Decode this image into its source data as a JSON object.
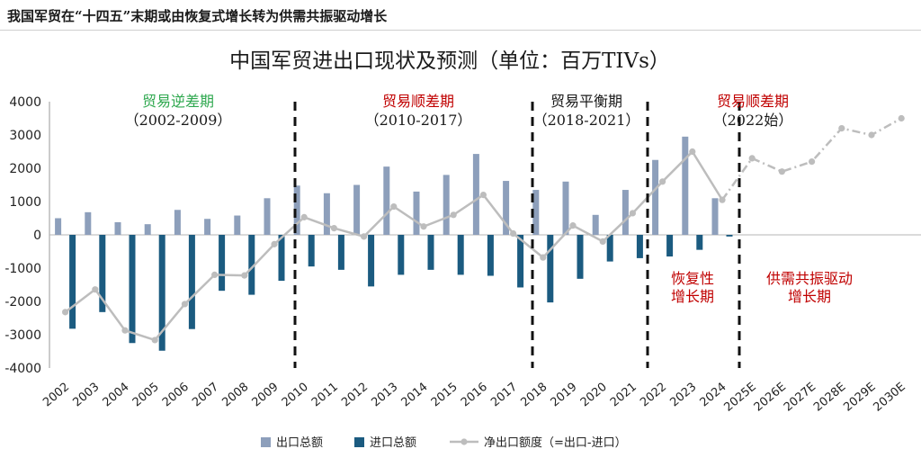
{
  "header": {
    "title": "我国军贸在“十四五”末期或由恢复式增长转为供需共振驱动增长"
  },
  "chart_data": {
    "type": "bar",
    "title": "中国军贸进出口现状及预测（单位：百万TIVs）",
    "categories": [
      "2002",
      "2003",
      "2004",
      "2005",
      "2006",
      "2007",
      "2008",
      "2009",
      "2010",
      "2011",
      "2012",
      "2013",
      "2014",
      "2015",
      "2016",
      "2017",
      "2018",
      "2019",
      "2020",
      "2021",
      "2022",
      "2023",
      "2024",
      "2025E",
      "2026E",
      "2027E",
      "2028E",
      "2029E",
      "2030E"
    ],
    "ylim": [
      -4000,
      4000
    ],
    "yticks": [
      -4000,
      -3000,
      -2000,
      -1000,
      0,
      1000,
      2000,
      3000,
      4000
    ],
    "series": [
      {
        "name": "出口总额",
        "color": "#8d9fbb",
        "values": [
          500,
          680,
          380,
          320,
          750,
          480,
          580,
          1100,
          1480,
          1250,
          1500,
          2050,
          1300,
          1800,
          2430,
          1620,
          1350,
          1600,
          600,
          1350,
          2250,
          2950,
          1100,
          null,
          null,
          null,
          null,
          null,
          null
        ]
      },
      {
        "name": "进口总额",
        "color": "#1b5b80",
        "values": [
          -2820,
          -2320,
          -3250,
          -3480,
          -2830,
          -1680,
          -1800,
          -1380,
          -950,
          -1050,
          -1550,
          -1200,
          -1050,
          -1200,
          -1230,
          -1580,
          -2030,
          -1320,
          -800,
          -700,
          -650,
          -450,
          -50,
          null,
          null,
          null,
          null,
          null,
          null
        ]
      },
      {
        "name": "净出口额度（=出口-进口）",
        "color": "#bdbdbd",
        "values": [
          -2320,
          -1640,
          -2870,
          -3160,
          -2080,
          -1200,
          -1220,
          -280,
          530,
          200,
          -50,
          850,
          250,
          600,
          1200,
          40,
          -680,
          280,
          -200,
          650,
          1600,
          2500,
          1050,
          2300,
          1900,
          2200,
          3200,
          3000,
          3500
        ]
      }
    ],
    "periods": [
      {
        "name": "贸易逆差期",
        "range": "（2002-2009）",
        "name_color": "#2fa84f"
      },
      {
        "name": "贸易顺差期",
        "range": "（2010-2017）",
        "name_color": "#c00000"
      },
      {
        "name": "贸易平衡期",
        "range": "（2018-2021）",
        "name_color": "#1a1a1a"
      },
      {
        "name": "贸易顺差期",
        "range": "（2022始）",
        "name_color": "#c00000"
      }
    ],
    "annotations": [
      {
        "line1": "恢复性",
        "line2": "增长期",
        "color": "#c00000"
      },
      {
        "line1": "供需共振驱动",
        "line2": "增长期",
        "color": "#c00000"
      }
    ],
    "legend": {
      "position": "bottom"
    }
  }
}
